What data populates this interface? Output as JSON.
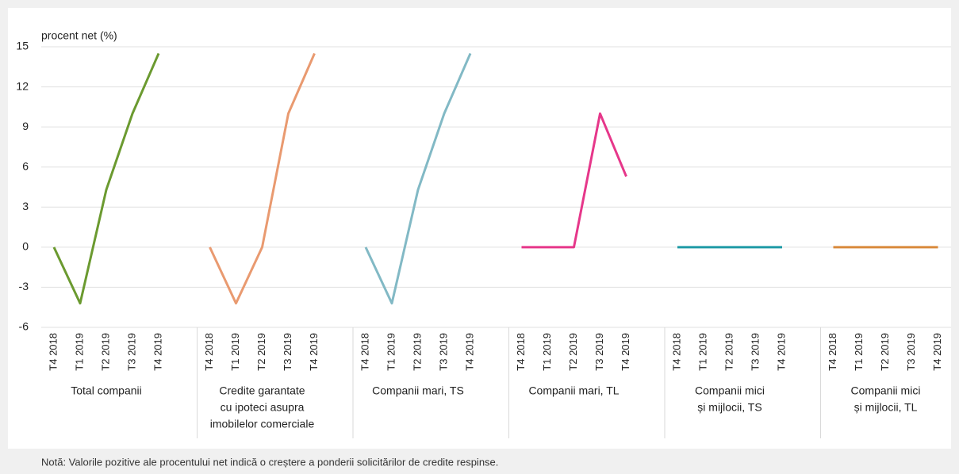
{
  "chart_data": {
    "type": "line",
    "y_label": "procent net (%)",
    "categories": [
      "T4 2018",
      "T1 2019",
      "T2 2019",
      "T3 2019",
      "T4 2019"
    ],
    "ylim": [
      -6,
      15
    ],
    "yticks": [
      -6,
      -3,
      0,
      3,
      6,
      9,
      12,
      15
    ],
    "grid": true,
    "series": [
      {
        "name": [
          "Total companii"
        ],
        "color": "#6b9a30",
        "values": [
          0,
          -4.2,
          4.3,
          10,
          14.5
        ]
      },
      {
        "name": [
          "Credite garantate",
          "cu ipoteci asupra",
          "imobilelor comerciale"
        ],
        "color": "#e99a70",
        "values": [
          0,
          -4.2,
          0,
          10,
          14.5
        ]
      },
      {
        "name": [
          "Companii mari, TS"
        ],
        "color": "#82b9c5",
        "values": [
          0,
          -4.2,
          4.3,
          10,
          14.5
        ]
      },
      {
        "name": [
          "Companii mari, TL"
        ],
        "color": "#e6378a",
        "values": [
          0,
          0,
          0,
          10,
          5.3
        ]
      },
      {
        "name": [
          "Companii mici",
          "și mijlocii, TS"
        ],
        "color": "#1f9aa6",
        "values": [
          0,
          0,
          0,
          0,
          0
        ]
      },
      {
        "name": [
          "Companii mici",
          "și mijlocii, TL"
        ],
        "color": "#d98a3c",
        "values": [
          0,
          0,
          0,
          0,
          0
        ]
      }
    ],
    "note": "Notă: Valorile pozitive ale procentului net indică o creștere a ponderii solicitărilor de credite respinse."
  }
}
